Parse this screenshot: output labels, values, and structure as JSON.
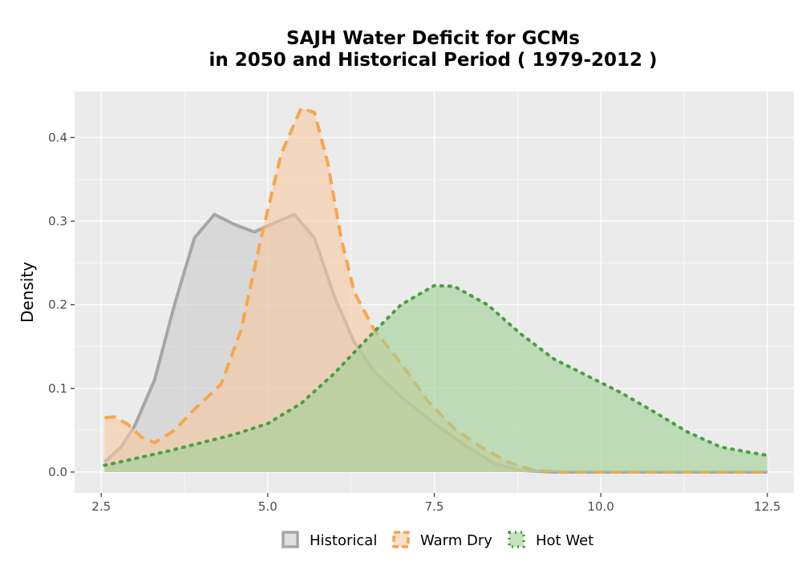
{
  "title": {
    "line1": "SAJH  Water Deficit for GCMs",
    "line2": "in 2050 and Historical Period ( 1979-2012 )"
  },
  "chart_data": {
    "type": "area",
    "xlabel": "",
    "ylabel": "Density",
    "xlim": [
      2.1,
      12.9
    ],
    "ylim": [
      -0.025,
      0.455
    ],
    "x_ticks": [
      2.5,
      5.0,
      7.5,
      10.0,
      12.5
    ],
    "x_tick_labels": [
      "2.5",
      "5.0",
      "7.5",
      "10.0",
      "12.5"
    ],
    "y_ticks": [
      0.0,
      0.1,
      0.2,
      0.3,
      0.4
    ],
    "y_tick_labels": [
      "0.0",
      "0.1",
      "0.2",
      "0.3",
      "0.4"
    ],
    "grid": true,
    "legend_position": "bottom",
    "series": [
      {
        "name": "Historical",
        "color": "#a6a6a6",
        "fill": "#cccccc",
        "line_style": "solid",
        "points": [
          [
            2.55,
            0.012
          ],
          [
            2.8,
            0.03
          ],
          [
            3.0,
            0.055
          ],
          [
            3.3,
            0.11
          ],
          [
            3.6,
            0.2
          ],
          [
            3.9,
            0.28
          ],
          [
            4.2,
            0.308
          ],
          [
            4.5,
            0.296
          ],
          [
            4.8,
            0.287
          ],
          [
            5.1,
            0.298
          ],
          [
            5.4,
            0.308
          ],
          [
            5.7,
            0.28
          ],
          [
            6.0,
            0.21
          ],
          [
            6.3,
            0.155
          ],
          [
            6.6,
            0.12
          ],
          [
            7.0,
            0.09
          ],
          [
            7.5,
            0.058
          ],
          [
            8.0,
            0.03
          ],
          [
            8.4,
            0.01
          ],
          [
            8.8,
            0.002
          ],
          [
            9.3,
            0.0
          ],
          [
            12.5,
            0.0
          ]
        ]
      },
      {
        "name": "Warm Dry",
        "color": "#f8a54f",
        "fill": "#f6c9a0",
        "line_style": "dashed",
        "points": [
          [
            2.55,
            0.065
          ],
          [
            2.7,
            0.066
          ],
          [
            2.9,
            0.057
          ],
          [
            3.1,
            0.042
          ],
          [
            3.3,
            0.035
          ],
          [
            3.6,
            0.05
          ],
          [
            3.9,
            0.075
          ],
          [
            4.3,
            0.105
          ],
          [
            4.6,
            0.17
          ],
          [
            4.9,
            0.28
          ],
          [
            5.2,
            0.38
          ],
          [
            5.5,
            0.435
          ],
          [
            5.7,
            0.43
          ],
          [
            5.9,
            0.37
          ],
          [
            6.1,
            0.28
          ],
          [
            6.3,
            0.215
          ],
          [
            6.6,
            0.17
          ],
          [
            7.0,
            0.13
          ],
          [
            7.4,
            0.085
          ],
          [
            7.8,
            0.052
          ],
          [
            8.2,
            0.03
          ],
          [
            8.6,
            0.012
          ],
          [
            9.0,
            0.002
          ],
          [
            9.5,
            0.0
          ],
          [
            12.5,
            0.0
          ]
        ]
      },
      {
        "name": "Hot Wet",
        "color": "#4a9e3f",
        "fill": "#9fd095",
        "line_style": "dotted",
        "points": [
          [
            2.55,
            0.008
          ],
          [
            3.0,
            0.016
          ],
          [
            3.5,
            0.025
          ],
          [
            4.0,
            0.035
          ],
          [
            4.5,
            0.045
          ],
          [
            5.0,
            0.058
          ],
          [
            5.5,
            0.082
          ],
          [
            6.0,
            0.118
          ],
          [
            6.5,
            0.16
          ],
          [
            7.0,
            0.2
          ],
          [
            7.5,
            0.223
          ],
          [
            7.8,
            0.222
          ],
          [
            8.3,
            0.2
          ],
          [
            8.8,
            0.165
          ],
          [
            9.3,
            0.135
          ],
          [
            9.8,
            0.115
          ],
          [
            10.3,
            0.095
          ],
          [
            10.8,
            0.072
          ],
          [
            11.3,
            0.048
          ],
          [
            11.8,
            0.03
          ],
          [
            12.2,
            0.024
          ],
          [
            12.5,
            0.02
          ]
        ]
      }
    ]
  }
}
